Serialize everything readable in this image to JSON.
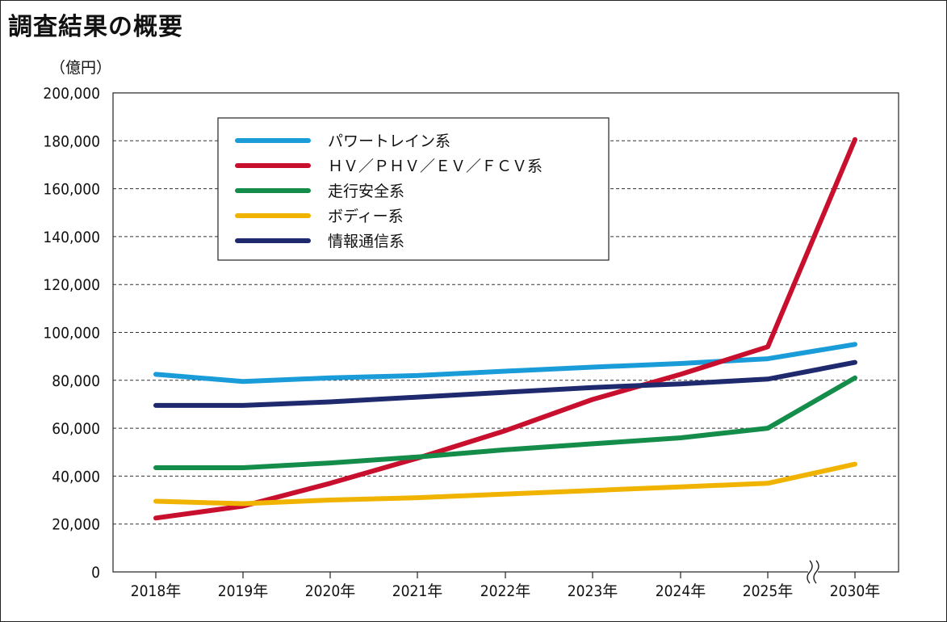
{
  "page": {
    "title": "調査結果の概要"
  },
  "chart_data": {
    "type": "line",
    "title": "調査結果の概要",
    "ylabel": "（億円）",
    "xlabel": "",
    "categories": [
      "2018年",
      "2019年",
      "2020年",
      "2021年",
      "2022年",
      "2023年",
      "2024年",
      "2025年",
      "2030年"
    ],
    "axis_break_between": [
      "2025年",
      "2030年"
    ],
    "ylim": [
      0,
      200000
    ],
    "yticks": [
      0,
      20000,
      40000,
      60000,
      80000,
      100000,
      120000,
      140000,
      160000,
      180000,
      200000
    ],
    "ytick_labels": [
      "0",
      "20,000",
      "40,000",
      "60,000",
      "80,000",
      "100,000",
      "120,000",
      "140,000",
      "160,000",
      "180,000",
      "200,000"
    ],
    "grid": "horizontal dashed",
    "legend_position": "top-left",
    "series": [
      {
        "name": "パワートレイン系",
        "color": "#1a9cd8",
        "values": [
          82500,
          79500,
          81000,
          82000,
          83800,
          85500,
          87000,
          89000,
          95000
        ]
      },
      {
        "name": "ＨＶ／ＰＨＶ／ＥＶ／ＦＣＶ系",
        "color": "#c8102e",
        "values": [
          22500,
          27500,
          37000,
          47500,
          59000,
          72000,
          82500,
          94000,
          180500
        ]
      },
      {
        "name": "走行安全系",
        "color": "#148c4a",
        "values": [
          43500,
          43500,
          45500,
          48000,
          51000,
          53500,
          56000,
          60000,
          81000
        ]
      },
      {
        "name": "ボディー系",
        "color": "#f0b400",
        "values": [
          29500,
          28500,
          30000,
          31000,
          32500,
          34000,
          35500,
          37000,
          45000
        ]
      },
      {
        "name": "情報通信系",
        "color": "#1f2a6e",
        "values": [
          69500,
          69500,
          71000,
          73000,
          75000,
          77000,
          78500,
          80500,
          87500
        ]
      }
    ]
  }
}
